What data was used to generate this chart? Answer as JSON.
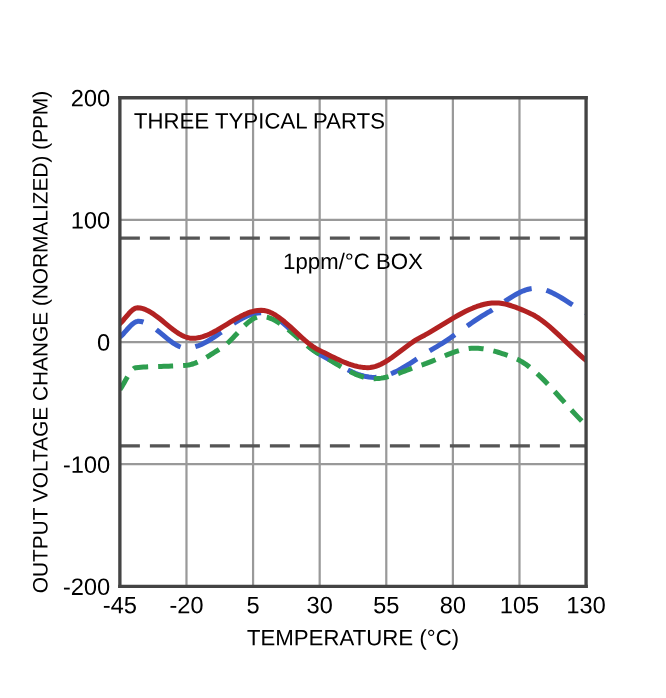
{
  "chart_data": {
    "type": "line",
    "xlabel": "TEMPERATURE (°C)",
    "ylabel": "OUTPUT VOLTAGE CHANGE (NORMALIZED) (PPM)",
    "annotations": [
      "THREE TYPICAL PARTS"
    ],
    "xlim": [
      -45,
      130
    ],
    "xticks": [
      -45,
      -20,
      5,
      30,
      55,
      80,
      105,
      130
    ],
    "ylim": [
      -200,
      200
    ],
    "yticks": [
      -200,
      -100,
      0,
      100,
      200
    ],
    "grid": true,
    "legend": false,
    "marker": "none",
    "ref_lines": [
      {
        "axis": "y",
        "value": 85,
        "label": "1ppm/°C BOX",
        "color": "#555555",
        "line_style": "dashed"
      },
      {
        "axis": "y",
        "value": -85,
        "color": "#555555",
        "line_style": "dashed"
      }
    ],
    "series": [
      {
        "color": "#3a5fcd",
        "line_style": "dashed",
        "x": [
          -45,
          -38,
          -20,
          8,
          30,
          50.5,
          73,
          93,
          111,
          130
        ],
        "values": [
          4,
          17,
          -5,
          24,
          -10,
          -29,
          -5,
          24,
          44,
          24
        ]
      },
      {
        "color": "#2e9e4f",
        "line_style": "dotted",
        "x": [
          -45,
          -39,
          -20,
          -7,
          8,
          30,
          50.5,
          68,
          88,
          103,
          130
        ],
        "values": [
          -39,
          -21,
          -19,
          -5,
          21,
          -10,
          -30,
          -19,
          -5,
          -13,
          -68
        ]
      },
      {
        "color": "#b22222",
        "line_style": "solid",
        "x": [
          -45,
          -38.4,
          -17.7,
          8,
          30,
          48,
          68,
          96,
          108.5,
          130
        ],
        "values": [
          15,
          28,
          3,
          26,
          -7,
          -21,
          4,
          32,
          24,
          -15
        ]
      }
    ]
  }
}
